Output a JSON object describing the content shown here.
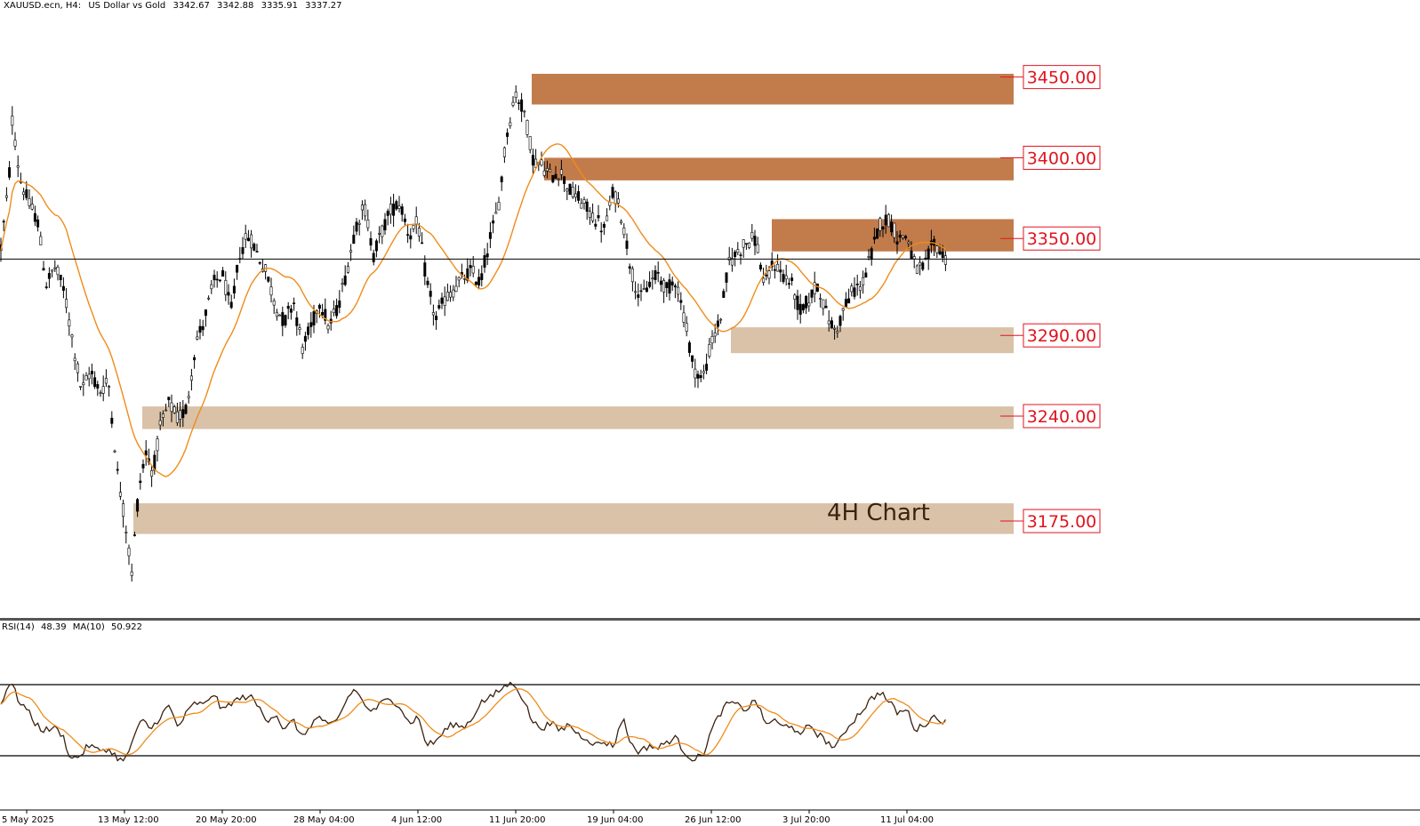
{
  "header": {
    "symbol": "XAUUSD.ecn, H4:",
    "description": "US Dollar vs Gold",
    "ohlc": [
      "3342.67",
      "3342.88",
      "3335.91",
      "3337.27"
    ]
  },
  "annotation": "4H Chart",
  "chart_data": [
    {
      "type": "candlestick",
      "title": "XAUUSD.ecn, H4: US Dollar vs Gold",
      "ylim": [
        3115,
        3490
      ],
      "current_price": 3337.27,
      "x_ticks": [
        "5 May 2025",
        "13 May 12:00",
        "20 May 20:00",
        "28 May 04:00",
        "4 Jun 12:00",
        "11 Jun 20:00",
        "19 Jun 04:00",
        "26 Jun 12:00",
        "3 Jul 20:00",
        "11 Jul 04:00"
      ],
      "price_path": [
        [
          0,
          3340
        ],
        [
          10,
          3385
        ],
        [
          14,
          3425
        ],
        [
          22,
          3388
        ],
        [
          32,
          3372
        ],
        [
          42,
          3362
        ],
        [
          52,
          3322
        ],
        [
          62,
          3332
        ],
        [
          72,
          3318
        ],
        [
          82,
          3285
        ],
        [
          92,
          3255
        ],
        [
          102,
          3268
        ],
        [
          112,
          3255
        ],
        [
          122,
          3262
        ],
        [
          132,
          3205
        ],
        [
          142,
          3170
        ],
        [
          148,
          3142
        ],
        [
          156,
          3195
        ],
        [
          164,
          3218
        ],
        [
          172,
          3205
        ],
        [
          180,
          3232
        ],
        [
          190,
          3248
        ],
        [
          200,
          3238
        ],
        [
          210,
          3245
        ],
        [
          220,
          3285
        ],
        [
          230,
          3300
        ],
        [
          240,
          3322
        ],
        [
          250,
          3328
        ],
        [
          260,
          3305
        ],
        [
          270,
          3342
        ],
        [
          280,
          3352
        ],
        [
          290,
          3340
        ],
        [
          300,
          3328
        ],
        [
          310,
          3308
        ],
        [
          320,
          3298
        ],
        [
          330,
          3312
        ],
        [
          340,
          3282
        ],
        [
          350,
          3295
        ],
        [
          360,
          3312
        ],
        [
          370,
          3295
        ],
        [
          380,
          3308
        ],
        [
          390,
          3330
        ],
        [
          400,
          3358
        ],
        [
          410,
          3370
        ],
        [
          420,
          3340
        ],
        [
          430,
          3355
        ],
        [
          440,
          3368
        ],
        [
          450,
          3372
        ],
        [
          460,
          3352
        ],
        [
          470,
          3360
        ],
        [
          480,
          3322
        ],
        [
          490,
          3300
        ],
        [
          500,
          3312
        ],
        [
          510,
          3318
        ],
        [
          520,
          3325
        ],
        [
          530,
          3330
        ],
        [
          540,
          3322
        ],
        [
          550,
          3348
        ],
        [
          560,
          3368
        ],
        [
          570,
          3415
        ],
        [
          580,
          3440
        ],
        [
          590,
          3428
        ],
        [
          600,
          3398
        ],
        [
          610,
          3395
        ],
        [
          620,
          3388
        ],
        [
          630,
          3392
        ],
        [
          640,
          3380
        ],
        [
          650,
          3375
        ],
        [
          660,
          3368
        ],
        [
          670,
          3362
        ],
        [
          680,
          3355
        ],
        [
          690,
          3380
        ],
        [
          700,
          3362
        ],
        [
          710,
          3330
        ],
        [
          720,
          3312
        ],
        [
          730,
          3322
        ],
        [
          740,
          3328
        ],
        [
          750,
          3318
        ],
        [
          760,
          3325
        ],
        [
          770,
          3300
        ],
        [
          780,
          3270
        ],
        [
          790,
          3262
        ],
        [
          800,
          3285
        ],
        [
          810,
          3300
        ],
        [
          820,
          3335
        ],
        [
          830,
          3342
        ],
        [
          840,
          3348
        ],
        [
          850,
          3350
        ],
        [
          860,
          3320
        ],
        [
          870,
          3335
        ],
        [
          880,
          3328
        ],
        [
          890,
          3322
        ],
        [
          900,
          3305
        ],
        [
          910,
          3312
        ],
        [
          920,
          3322
        ],
        [
          930,
          3302
        ],
        [
          940,
          3292
        ],
        [
          950,
          3308
        ],
        [
          960,
          3318
        ],
        [
          970,
          3322
        ],
        [
          980,
          3340
        ],
        [
          990,
          3360
        ],
        [
          1000,
          3362
        ],
        [
          1010,
          3350
        ],
        [
          1020,
          3352
        ],
        [
          1030,
          3330
        ],
        [
          1040,
          3332
        ],
        [
          1050,
          3348
        ],
        [
          1060,
          3340
        ],
        [
          1065,
          3337
        ]
      ],
      "zones": [
        {
          "price": "3450.00",
          "top": 3452,
          "bottom": 3433,
          "color": "#c27c4c"
        },
        {
          "price": "3400.00",
          "top": 3400,
          "bottom": 3386,
          "color": "#c27c4c"
        },
        {
          "price": "3350.00",
          "top": 3362,
          "bottom": 3342,
          "color": "#c27c4c"
        },
        {
          "price": "3290.00",
          "top": 3295,
          "bottom": 3279,
          "color": "#d9c2a8"
        },
        {
          "price": "3240.00",
          "top": 3246,
          "bottom": 3232,
          "color": "#d9c2a8"
        },
        {
          "price": "3175.00",
          "top": 3186,
          "bottom": 3167,
          "color": "#d9c2a8"
        }
      ],
      "colors": {
        "candles": "#000000",
        "moving_average": "#ef8c1a",
        "labels": "#e0141e"
      }
    },
    {
      "type": "line",
      "title": "RSI(14) 48.39 MA(10) 50.922",
      "header": [
        "RSI(14)",
        "48.39",
        "MA(10)",
        "50.922"
      ],
      "levels": [
        70,
        30
      ],
      "ylim": [
        0,
        100
      ],
      "rsi_path": [
        [
          0,
          58
        ],
        [
          6,
          66
        ],
        [
          12,
          72
        ],
        [
          20,
          62
        ],
        [
          30,
          56
        ],
        [
          40,
          48
        ],
        [
          50,
          44
        ],
        [
          60,
          46
        ],
        [
          70,
          42
        ],
        [
          80,
          28
        ],
        [
          90,
          30
        ],
        [
          100,
          36
        ],
        [
          110,
          33
        ],
        [
          120,
          34
        ],
        [
          130,
          30
        ],
        [
          140,
          26
        ],
        [
          150,
          40
        ],
        [
          160,
          50
        ],
        [
          170,
          45
        ],
        [
          180,
          52
        ],
        [
          190,
          58
        ],
        [
          200,
          46
        ],
        [
          210,
          54
        ],
        [
          220,
          60
        ],
        [
          230,
          58
        ],
        [
          240,
          66
        ],
        [
          250,
          55
        ],
        [
          260,
          60
        ],
        [
          270,
          62
        ],
        [
          280,
          64
        ],
        [
          290,
          58
        ],
        [
          300,
          50
        ],
        [
          310,
          54
        ],
        [
          320,
          44
        ],
        [
          330,
          50
        ],
        [
          340,
          40
        ],
        [
          350,
          48
        ],
        [
          360,
          52
        ],
        [
          370,
          46
        ],
        [
          380,
          50
        ],
        [
          390,
          62
        ],
        [
          400,
          68
        ],
        [
          410,
          58
        ],
        [
          420,
          55
        ],
        [
          430,
          60
        ],
        [
          440,
          62
        ],
        [
          450,
          58
        ],
        [
          460,
          48
        ],
        [
          470,
          52
        ],
        [
          480,
          36
        ],
        [
          490,
          38
        ],
        [
          500,
          44
        ],
        [
          510,
          48
        ],
        [
          520,
          46
        ],
        [
          530,
          50
        ],
        [
          540,
          60
        ],
        [
          550,
          62
        ],
        [
          560,
          66
        ],
        [
          570,
          70
        ],
        [
          580,
          70
        ],
        [
          590,
          60
        ],
        [
          600,
          48
        ],
        [
          610,
          46
        ],
        [
          620,
          48
        ],
        [
          630,
          44
        ],
        [
          640,
          48
        ],
        [
          650,
          42
        ],
        [
          660,
          40
        ],
        [
          670,
          36
        ],
        [
          680,
          38
        ],
        [
          690,
          35
        ],
        [
          700,
          52
        ],
        [
          710,
          36
        ],
        [
          720,
          32
        ],
        [
          730,
          36
        ],
        [
          740,
          34
        ],
        [
          750,
          38
        ],
        [
          760,
          40
        ],
        [
          770,
          32
        ],
        [
          780,
          28
        ],
        [
          790,
          30
        ],
        [
          800,
          44
        ],
        [
          810,
          54
        ],
        [
          820,
          60
        ],
        [
          830,
          58
        ],
        [
          840,
          56
        ],
        [
          850,
          62
        ],
        [
          860,
          48
        ],
        [
          870,
          50
        ],
        [
          880,
          46
        ],
        [
          890,
          48
        ],
        [
          900,
          40
        ],
        [
          910,
          48
        ],
        [
          920,
          42
        ],
        [
          930,
          38
        ],
        [
          940,
          34
        ],
        [
          950,
          44
        ],
        [
          960,
          50
        ],
        [
          970,
          56
        ],
        [
          980,
          62
        ],
        [
          990,
          66
        ],
        [
          1000,
          60
        ],
        [
          1010,
          54
        ],
        [
          1020,
          56
        ],
        [
          1030,
          44
        ],
        [
          1040,
          48
        ],
        [
          1050,
          52
        ],
        [
          1060,
          50
        ],
        [
          1065,
          48
        ]
      ],
      "colors": {
        "rsi": "#3b2210",
        "ma": "#ef8c1a"
      }
    }
  ]
}
